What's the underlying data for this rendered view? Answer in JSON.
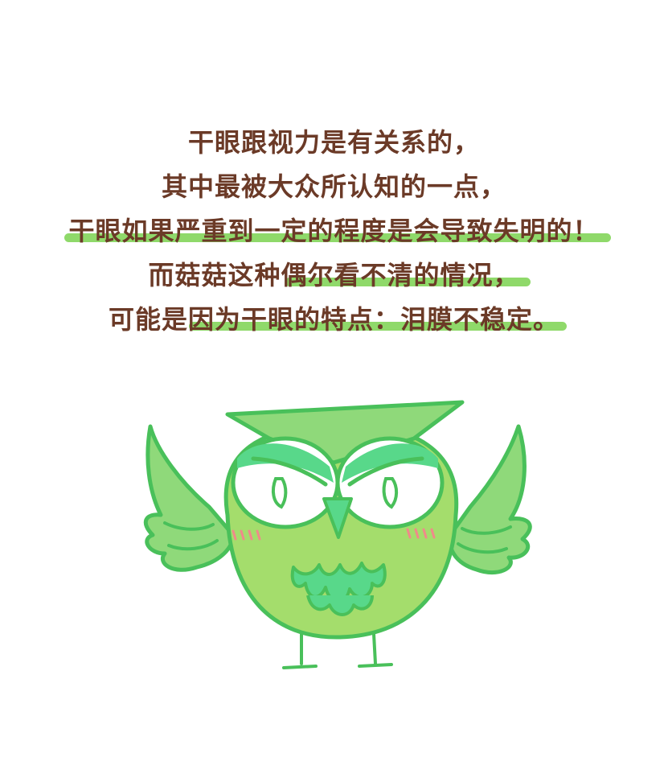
{
  "text_lines": [
    "干眼跟视力是有关系的，",
    "其中最被大众所认知的一点，",
    "干眼如果严重到一定的程度是会导致失明的！",
    "而菇菇这种偶尔看不清的情况，",
    "可能是因为干眼的特点：泪膜不稳定。"
  ],
  "colors": {
    "text": "#6b3a27",
    "highlight": "#8fd96a",
    "owl_body": "#a4dd6c",
    "owl_outline": "#49c05a",
    "owl_eye_lid": "#58d88a",
    "blush": "#f08a8a"
  },
  "illustration": {
    "icon": "owl-icon"
  }
}
